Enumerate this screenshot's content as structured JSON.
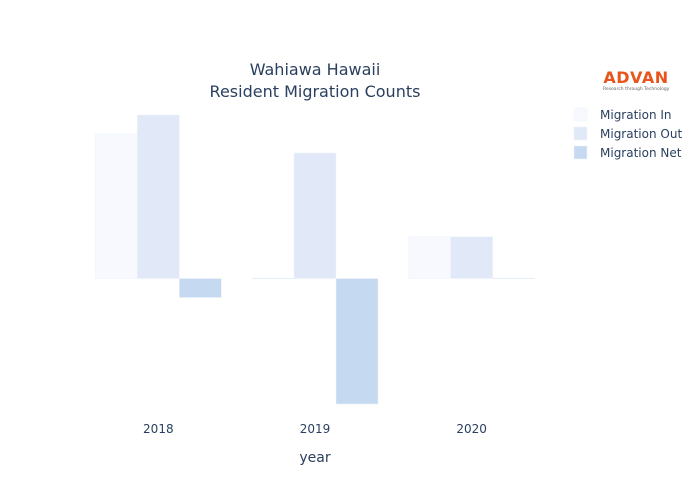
{
  "title_line1": "Wahiawa Hawaii",
  "title_line2": "Resident Migration Counts",
  "logo": {
    "name": "ADVAN",
    "tagline": "Research through Technology",
    "color": "#e8541c"
  },
  "colors": {
    "Migration In": "#f7f9fe",
    "Migration Out": "#e1e9f8",
    "Migration Net": "#c5daf1"
  },
  "chart_data": {
    "type": "bar",
    "categories": [
      "2018",
      "2019",
      "2020"
    ],
    "xlabel": "year",
    "ylabel": "",
    "ylim": [
      -33,
      43
    ],
    "grid": false,
    "legend_position": "top-right",
    "series": [
      {
        "name": "Migration In",
        "values": [
          38,
          0,
          11
        ]
      },
      {
        "name": "Migration Out",
        "values": [
          43,
          33,
          11
        ]
      },
      {
        "name": "Migration Net",
        "values": [
          -5,
          -33,
          0
        ]
      }
    ]
  }
}
